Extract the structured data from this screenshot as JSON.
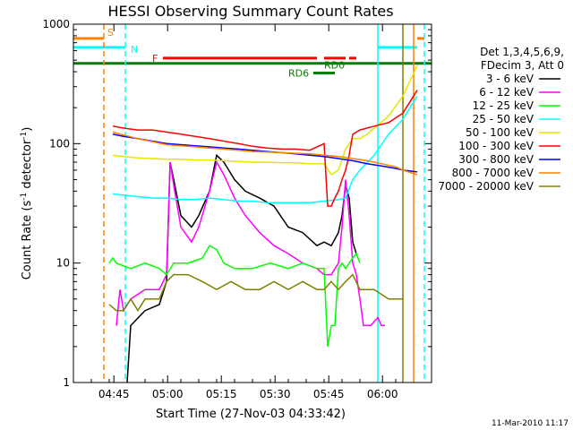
{
  "chart_data": {
    "type": "line",
    "title": "HESSI Observing Summary Count Rates",
    "xlabel": "Start Time (27-Nov-03 04:33:42)",
    "ylabel_main": "Count Rate (s",
    "ylabel_sup": "-1",
    "ylabel_mid": " detector",
    "ylabel_end": ")",
    "y_scale": "log",
    "ylim": [
      1,
      1000
    ],
    "xlim_minutes": [
      0,
      100
    ],
    "x_ticks": [
      {
        "m": 11.3,
        "label": "04:45"
      },
      {
        "m": 26.3,
        "label": "05:00"
      },
      {
        "m": 41.3,
        "label": "05:15"
      },
      {
        "m": 56.3,
        "label": "05:30"
      },
      {
        "m": 71.3,
        "label": "05:45"
      },
      {
        "m": 86.3,
        "label": "06:00"
      }
    ],
    "y_ticks": [
      {
        "v": 1,
        "label": "1"
      },
      {
        "v": 10,
        "label": "10"
      },
      {
        "v": 100,
        "label": "100"
      },
      {
        "v": 1000,
        "label": "1000"
      }
    ],
    "timestamp": "11-Mar-2010 11:17",
    "legend": {
      "header1": "Det 1,3,4,5,6,9,",
      "header2": "FDecim 3, Att 0",
      "placement": "right"
    },
    "series": [
      {
        "name": "3 - 6 keV",
        "color": "#000000",
        "x": [
          15,
          16,
          20,
          24,
          26,
          27,
          28,
          30,
          33,
          35,
          38,
          40,
          42,
          45,
          48,
          52,
          56,
          60,
          64,
          68,
          70,
          72,
          74,
          75,
          76,
          77,
          78,
          79
        ],
        "y": [
          1,
          3,
          4,
          4.5,
          7,
          70,
          50,
          25,
          20,
          25,
          40,
          80,
          70,
          50,
          40,
          35,
          30,
          20,
          18,
          14,
          15,
          14,
          18,
          25,
          45,
          35,
          15,
          12
        ]
      },
      {
        "name": "6 - 12 keV",
        "color": "#ff00ff",
        "x": [
          12,
          13,
          14,
          16,
          20,
          24,
          26,
          27,
          28,
          30,
          33,
          35,
          38,
          40,
          42,
          45,
          48,
          52,
          56,
          60,
          64,
          68,
          70,
          72,
          74,
          75,
          76,
          77,
          78,
          79,
          80,
          81,
          83,
          85,
          86,
          87
        ],
        "y": [
          3,
          6,
          4,
          5,
          6,
          6,
          8,
          70,
          45,
          20,
          15,
          20,
          40,
          70,
          55,
          35,
          25,
          18,
          14,
          12,
          10,
          9,
          8,
          8,
          10,
          20,
          50,
          25,
          10,
          8,
          5,
          3,
          3,
          3.5,
          3,
          3
        ]
      },
      {
        "name": "12 - 25 keV",
        "color": "#00ff00",
        "x": [
          10,
          11,
          12,
          16,
          20,
          24,
          26,
          28,
          32,
          36,
          38,
          40,
          42,
          45,
          50,
          55,
          60,
          64,
          68,
          70,
          71,
          72,
          73,
          74,
          75,
          76,
          77,
          78,
          79,
          80
        ],
        "y": [
          10,
          11,
          10,
          9,
          10,
          9,
          8,
          10,
          10,
          11,
          14,
          13,
          10,
          9,
          9,
          10,
          9,
          10,
          9,
          9,
          2,
          3,
          3,
          9,
          10,
          9,
          10,
          11,
          12,
          10
        ]
      },
      {
        "name": "25 - 50 keV",
        "color": "#00ffff",
        "x": [
          11,
          14,
          18,
          22,
          26,
          30,
          34,
          38,
          42,
          46,
          50,
          54,
          58,
          62,
          66,
          70,
          74,
          76,
          78,
          80,
          84,
          88,
          92,
          96
        ],
        "y": [
          38,
          37,
          36,
          35,
          35,
          34,
          34,
          35,
          34,
          33,
          33,
          32,
          32,
          32,
          32,
          33,
          34,
          35,
          50,
          60,
          80,
          120,
          160,
          250
        ]
      },
      {
        "name": "50 - 100 keV",
        "color": "#e6e600",
        "x": [
          11,
          14,
          18,
          22,
          26,
          30,
          34,
          38,
          42,
          46,
          50,
          54,
          58,
          62,
          66,
          70,
          72,
          74,
          76,
          78,
          80,
          82,
          84,
          88,
          92,
          96
        ],
        "y": [
          80,
          78,
          76,
          75,
          74,
          74,
          73,
          73,
          72,
          71,
          70,
          70,
          69,
          69,
          68,
          68,
          55,
          60,
          90,
          110,
          110,
          120,
          135,
          170,
          250,
          450
        ]
      },
      {
        "name": "100 - 300 keV",
        "color": "#ff0000",
        "x": [
          11,
          14,
          18,
          22,
          26,
          30,
          34,
          38,
          42,
          46,
          50,
          54,
          58,
          62,
          66,
          70,
          71,
          72,
          73,
          74,
          75,
          76,
          77,
          78,
          80,
          84,
          88,
          92,
          96
        ],
        "y": [
          140,
          135,
          130,
          130,
          125,
          120,
          115,
          110,
          105,
          100,
          95,
          92,
          90,
          90,
          88,
          100,
          30,
          30,
          35,
          40,
          50,
          60,
          80,
          120,
          130,
          140,
          150,
          180,
          280
        ]
      },
      {
        "name": "300 - 800 keV",
        "color": "#0000ff",
        "x": [
          11,
          14,
          18,
          22,
          26,
          30,
          34,
          38,
          42,
          46,
          50,
          54,
          58,
          62,
          66,
          70,
          74,
          78,
          82,
          86,
          90,
          92,
          96
        ],
        "y": [
          120,
          115,
          110,
          105,
          100,
          98,
          96,
          94,
          92,
          90,
          88,
          86,
          84,
          82,
          80,
          78,
          75,
          72,
          68,
          65,
          62,
          60,
          58
        ]
      },
      {
        "name": "800 - 7000 keV",
        "color": "#ff8000",
        "x": [
          11,
          14,
          18,
          22,
          26,
          30,
          34,
          38,
          42,
          46,
          50,
          54,
          58,
          62,
          66,
          70,
          74,
          78,
          82,
          86,
          90,
          92,
          96
        ],
        "y": [
          125,
          118,
          110,
          104,
          98,
          96,
          94,
          92,
          90,
          88,
          86,
          85,
          84,
          83,
          82,
          80,
          78,
          75,
          72,
          68,
          64,
          60,
          55
        ]
      },
      {
        "name": "7000 - 20000 keV",
        "color": "#808000",
        "x": [
          10,
          12,
          14,
          16,
          18,
          20,
          24,
          26,
          28,
          32,
          36,
          40,
          44,
          48,
          52,
          56,
          60,
          64,
          68,
          70,
          72,
          74,
          76,
          78,
          80,
          84,
          88,
          92
        ],
        "y": [
          4.5,
          4,
          4,
          5,
          4,
          5,
          5,
          7,
          8,
          8,
          7,
          6,
          7,
          6,
          6,
          7,
          6,
          7,
          6,
          6,
          7,
          6,
          7,
          8,
          6,
          6,
          5,
          5
        ]
      }
    ],
    "flags": [
      {
        "label": "S",
        "color": "#ff8000",
        "segments": [
          [
            0,
            8.5
          ],
          [
            96,
            98
          ]
        ],
        "level": 760
      },
      {
        "label": "N",
        "color": "#00ffff",
        "segments": [
          [
            0,
            14.5
          ],
          [
            85,
            96
          ]
        ],
        "level": 640
      },
      {
        "label": "F",
        "color": "#ff0000",
        "segments": [
          [
            25,
            68
          ],
          [
            70,
            76
          ],
          [
            77,
            79
          ]
        ],
        "level": 520
      },
      {
        "label": "RD0",
        "color": "#008000",
        "segments": [
          [
            0,
            100
          ]
        ],
        "level": 470
      },
      {
        "label": "RD6",
        "color": "#008000",
        "segments": [
          [
            67,
            73
          ]
        ],
        "level": 390
      }
    ],
    "vlines": [
      {
        "m": 8.5,
        "color": "#ff8000",
        "dash": true
      },
      {
        "m": 14.5,
        "color": "#00ffff",
        "dash": true
      },
      {
        "m": 85,
        "color": "#00ffff",
        "dash": false
      },
      {
        "m": 92,
        "color": "#808000",
        "dash": false
      },
      {
        "m": 95,
        "color": "#ff8000",
        "dash": false
      },
      {
        "m": 98,
        "color": "#00ffff",
        "dash": true
      }
    ]
  }
}
